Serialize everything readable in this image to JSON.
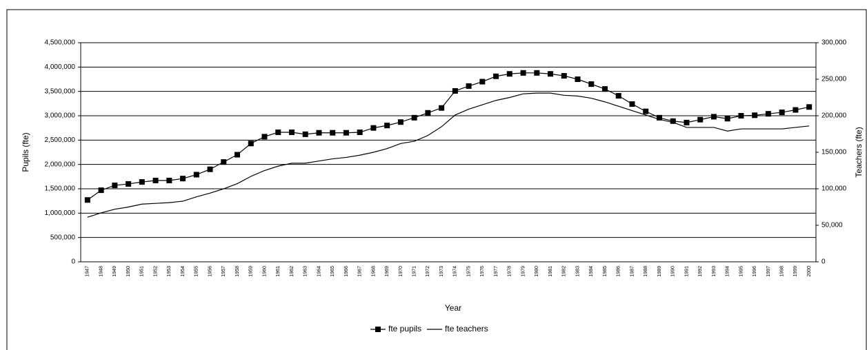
{
  "chart_data": {
    "type": "line",
    "categories": [
      "1947",
      "1948",
      "1949",
      "1950",
      "1951",
      "1952",
      "1953",
      "1954",
      "1955",
      "1956",
      "1957",
      "1958",
      "1959",
      "1960",
      "1961",
      "1962",
      "1963",
      "1964",
      "1965",
      "1966",
      "1967",
      "1968",
      "1969",
      "1970",
      "1971",
      "1972",
      "1973",
      "1974",
      "1975",
      "1976",
      "1977",
      "1978",
      "1979",
      "1980",
      "1981",
      "1982",
      "1983",
      "1984",
      "1985",
      "1986",
      "1987",
      "1988",
      "1989",
      "1990",
      "1991",
      "1992",
      "1993",
      "1994",
      "1995",
      "1996",
      "1997",
      "1998",
      "1999",
      "2000"
    ],
    "series": [
      {
        "name": "fte pupils",
        "color": "#000000",
        "marker": "square",
        "values": [
          1270000,
          1470000,
          1570000,
          1600000,
          1640000,
          1670000,
          1670000,
          1710000,
          1790000,
          1900000,
          2050000,
          2200000,
          2430000,
          2570000,
          2660000,
          2660000,
          2620000,
          2650000,
          2650000,
          2650000,
          2660000,
          2750000,
          2800000,
          2870000,
          2960000,
          3060000,
          3160000,
          3510000,
          3610000,
          3700000,
          3810000,
          3860000,
          3880000,
          3880000,
          3860000,
          3820000,
          3750000,
          3650000,
          3550000,
          3410000,
          3240000,
          3090000,
          2960000,
          2890000,
          2860000,
          2920000,
          2980000,
          2940000,
          3000000,
          3010000,
          3040000,
          3070000,
          3120000,
          3180000
        ]
      },
      {
        "name": "fte teachers",
        "color": "#000000",
        "axis": "y2",
        "values": [
          61000,
          67000,
          72000,
          75000,
          79000,
          80000,
          81000,
          83000,
          89000,
          94000,
          100000,
          107000,
          117000,
          125000,
          131000,
          135000,
          135000,
          138000,
          141000,
          143000,
          146000,
          150000,
          155000,
          162000,
          165000,
          173000,
          185000,
          201000,
          209000,
          215000,
          221000,
          225000,
          230000,
          231000,
          231000,
          228000,
          227000,
          224000,
          219000,
          213000,
          207000,
          201000,
          195000,
          191000,
          184000,
          184000,
          184000,
          179000,
          182000,
          182000,
          182000,
          182000,
          184000,
          186000
        ]
      }
    ],
    "xlabel": "Year",
    "ylabel": "Pupils (fte)",
    "y2label": "Teachers (fte)",
    "ylim": [
      0,
      4500000
    ],
    "yticks": [
      0,
      {
        "value": 500000,
        "label": "500,000"
      },
      {
        "value": 1000000,
        "label": "1,000,000"
      },
      {
        "value": 1500000,
        "label": "1,500,000"
      },
      {
        "value": 2000000,
        "label": "2,000,000"
      },
      {
        "value": 2500000,
        "label": "2,500,000"
      },
      {
        "value": 3000000,
        "label": "3,000,000"
      },
      {
        "value": 3500000,
        "label": "3,500,000"
      },
      {
        "value": 4000000,
        "label": "4,000,000"
      },
      {
        "value": 4500000,
        "label": "4,500,000"
      }
    ],
    "y2lim": [
      0,
      300000
    ],
    "y2ticks": [
      0,
      {
        "value": 50000,
        "label": "50,000"
      },
      {
        "value": 100000,
        "label": "100,000"
      },
      {
        "value": 150000,
        "label": "150,000"
      },
      {
        "value": 200000,
        "label": "200,000"
      },
      {
        "value": 250000,
        "label": "250,000"
      },
      {
        "value": 300000,
        "label": "300,000"
      }
    ],
    "grid": true,
    "legend": "bottom"
  }
}
